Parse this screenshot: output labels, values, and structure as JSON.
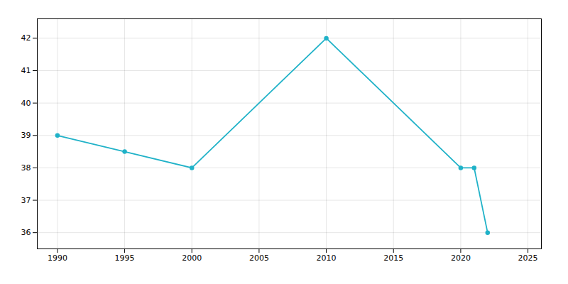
{
  "chart_data": {
    "type": "line",
    "x": [
      1990,
      1995,
      2000,
      2010,
      2020,
      2021,
      2022
    ],
    "values": [
      39,
      38.5,
      38,
      42,
      38,
      38,
      36
    ],
    "color": "#20B2C8",
    "marker": "circle",
    "xlim": [
      1988.5,
      2026
    ],
    "ylim": [
      35.5,
      42.6
    ],
    "xticks": [
      1990,
      1995,
      2000,
      2005,
      2010,
      2015,
      2020,
      2025
    ],
    "yticks": [
      36,
      37,
      38,
      39,
      40,
      41,
      42
    ],
    "grid": true
  }
}
